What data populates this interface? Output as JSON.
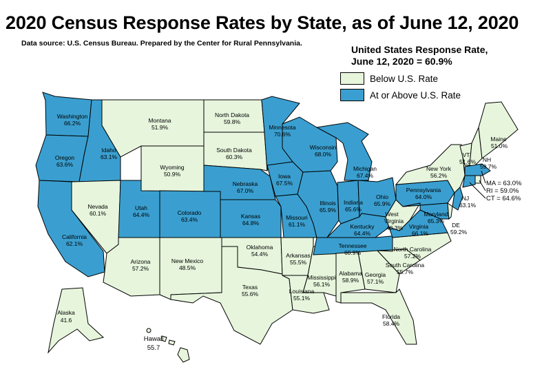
{
  "title": "2020 Census Response Rates by State, as of June 12, 2020",
  "source": "Data source: U.S. Census Bureau. Prepared by the Center for Rural Pennsylvania.",
  "us_rate": {
    "line1": "United States Response Rate,",
    "line2": "June 12, 2020 = 60.9%"
  },
  "legend": {
    "below": "Below U.S. Rate",
    "above": "At or Above U.S. Rate"
  },
  "colors": {
    "below": "#e6f5dc",
    "above": "#3a9fd0"
  },
  "states": {
    "washington": {
      "name": "Washington",
      "rate": "66.2%",
      "status": "above"
    },
    "oregon": {
      "name": "Oregon",
      "rate": "63.6%",
      "status": "above"
    },
    "california": {
      "name": "California",
      "rate": "62.1%",
      "status": "above"
    },
    "idaho": {
      "name": "Idaho",
      "rate": "63.1%",
      "status": "above"
    },
    "nevada": {
      "name": "Nevada",
      "rate": "60.1%",
      "status": "below"
    },
    "utah": {
      "name": "Utah",
      "rate": "64.4%",
      "status": "above"
    },
    "arizona": {
      "name": "Arizona",
      "rate": "57.2%",
      "status": "below"
    },
    "montana": {
      "name": "Montana",
      "rate": "51.9%",
      "status": "below"
    },
    "wyoming": {
      "name": "Wyoming",
      "rate": "50.9%",
      "status": "below"
    },
    "colorado": {
      "name": "Colorado",
      "rate": "63.4%",
      "status": "above"
    },
    "new_mexico": {
      "name": "New Mexico",
      "rate": "48.5%",
      "status": "below"
    },
    "north_dakota": {
      "name": "North Dakota",
      "rate": "59.8%",
      "status": "below"
    },
    "south_dakota": {
      "name": "South Dakota",
      "rate": "60.3%",
      "status": "below"
    },
    "nebraska": {
      "name": "Nebraska",
      "rate": "67.0%",
      "status": "above"
    },
    "kansas": {
      "name": "Kansas",
      "rate": "64.8%",
      "status": "above"
    },
    "oklahoma": {
      "name": "Oklahoma",
      "rate": "54.4%",
      "status": "below"
    },
    "texas": {
      "name": "Texas",
      "rate": "55.6%",
      "status": "below"
    },
    "minnesota": {
      "name": "Minnesota",
      "rate": "70.6%",
      "status": "above"
    },
    "iowa": {
      "name": "Iowa",
      "rate": "67.5%",
      "status": "above"
    },
    "missouri": {
      "name": "Missouri",
      "rate": "61.1%",
      "status": "above"
    },
    "arkansas": {
      "name": "Arkansas",
      "rate": "55.5%",
      "status": "below"
    },
    "louisiana": {
      "name": "Louisiana",
      "rate": "55.1%",
      "status": "below"
    },
    "wisconsin": {
      "name": "Wisconsin",
      "rate": "68.0%",
      "status": "above"
    },
    "illinois": {
      "name": "Illinois",
      "rate": "65.9%",
      "status": "above"
    },
    "mississippi": {
      "name": "Mississippi",
      "rate": "56.1%",
      "status": "below"
    },
    "michigan": {
      "name": "Michigan",
      "rate": "67.4%",
      "status": "above"
    },
    "indiana": {
      "name": "Indiana",
      "rate": "65.6%",
      "status": "above"
    },
    "kentucky": {
      "name": "Kentucky",
      "rate": "64.4%",
      "status": "above"
    },
    "tennessee": {
      "name": "Tennessee",
      "rate": "60.9%",
      "status": "above"
    },
    "alabama": {
      "name": "Alabama",
      "rate": "58.9%",
      "status": "below"
    },
    "ohio": {
      "name": "Ohio",
      "rate": "65.9%",
      "status": "above"
    },
    "west_virginia": {
      "name1": "West",
      "name2": "Virginia",
      "rate": "48.3%",
      "status": "below"
    },
    "georgia": {
      "name": "Georgia",
      "rate": "57.1%",
      "status": "below"
    },
    "florida": {
      "name": "Florida",
      "rate": "58.4%",
      "status": "below"
    },
    "south_carolina": {
      "name": "South Carolina",
      "rate": "55.7%",
      "status": "below"
    },
    "north_carolina": {
      "name": "North Carolina",
      "rate": "57.2%",
      "status": "below"
    },
    "virginia": {
      "name": "Virginia",
      "rate": "66.1%",
      "status": "above"
    },
    "pennsylvania": {
      "name": "Pennsylvania",
      "rate": "64.0%",
      "status": "above"
    },
    "new_york": {
      "name": "New York",
      "rate": "56.2%",
      "status": "below"
    },
    "maryland": {
      "name": "Maryland",
      "rate": "65.3%",
      "status": "above"
    },
    "delaware": {
      "name": "DE",
      "rate": "59.2%",
      "status": "below"
    },
    "new_jersey": {
      "name": "NJ",
      "rate": "63.1%",
      "status": "above"
    },
    "vermont": {
      "name": "VT",
      "rate": "51.6%",
      "status": "below"
    },
    "new_hampshire": {
      "name": "NH",
      "rate": "59.7%",
      "status": "below"
    },
    "maine": {
      "name": "Maine",
      "rate": "51.0%",
      "status": "below"
    },
    "massachusetts": {
      "label": "MA = 63.0%",
      "status": "above"
    },
    "rhode_island": {
      "label": "RI  =  59.0%",
      "status": "below"
    },
    "connecticut": {
      "label": "CT = 64.6%",
      "status": "above"
    },
    "alaska": {
      "name": "Alaska",
      "rate": "41.6",
      "status": "below"
    },
    "hawaii": {
      "name": "Hawaii",
      "rate": "55.7",
      "status": "below"
    }
  }
}
